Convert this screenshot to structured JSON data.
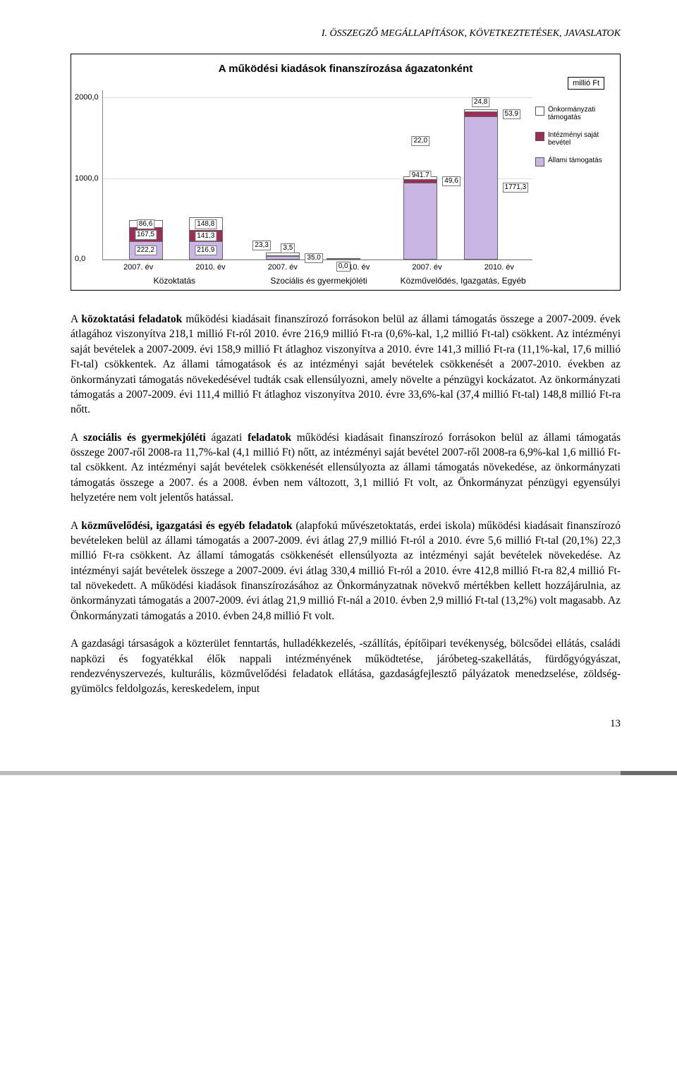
{
  "running_head": "I. ÖSSZEGZŐ MEGÁLLAPÍTÁSOK, KÖVETKEZTETÉSEK, JAVASLATOK",
  "chart": {
    "type": "stacked-bar",
    "title": "A működési kiadások finanszírozása ágazatonként",
    "unit_box": "millió Ft",
    "y_ticks": [
      "0,0",
      "1000,0",
      "2000,0"
    ],
    "x_year_labels": [
      "2007. év",
      "2010. év",
      "2007. év",
      "2010. év",
      "2007. év",
      "2010. év"
    ],
    "x_group_labels": [
      "Közoktatás",
      "Szociális és gyermekjóléti",
      "Közművelődés, Igazgatás, Egyéb"
    ],
    "legend": [
      {
        "label": "Önkormányzati támogatás",
        "color": "#ffffff"
      },
      {
        "label": "Intézményi saját bevétel",
        "color": "#9a2e59"
      },
      {
        "label": "Állami támogatás",
        "color": "#c9b6e4"
      }
    ],
    "ymax": 2100,
    "bars": [
      {
        "x_pct": 6,
        "segs": [
          {
            "v": 222.2,
            "c": "#c9b6e4",
            "lbl": "222,2",
            "side": "c"
          },
          {
            "v": 167.5,
            "c": "#9a2e59",
            "lbl": "167,5",
            "side": "c"
          },
          {
            "v": 86.6,
            "c": "#ffffff",
            "lbl": "86,6",
            "side": "c"
          }
        ]
      },
      {
        "x_pct": 20,
        "segs": [
          {
            "v": 216.9,
            "c": "#c9b6e4",
            "lbl": "216,9",
            "side": "c"
          },
          {
            "v": 141.3,
            "c": "#9a2e59",
            "lbl": "141,3",
            "side": "c"
          },
          {
            "v": 148.8,
            "c": "#ffffff",
            "lbl": "148,8",
            "side": "c"
          }
        ]
      },
      {
        "x_pct": 38,
        "segs": [
          {
            "v": 35.0,
            "c": "#c9b6e4",
            "lbl": "35,0",
            "side": "r"
          },
          {
            "v": 3.5,
            "c": "#9a2e59",
            "lbl": "3,5",
            "side": "t2"
          },
          {
            "v": 23.3,
            "c": "#ffffff",
            "lbl": "23,3",
            "side": "t1"
          }
        ]
      },
      {
        "x_pct": 52,
        "segs": [
          {
            "v": 0.01,
            "c": "#c9b6e4",
            "lbl": "0,0",
            "side": "b"
          }
        ]
      },
      {
        "x_pct": 70,
        "segs": [
          {
            "v": 941.7,
            "c": "#c9b6e4",
            "lbl": "941,7",
            "side": "t"
          },
          {
            "v": 49.6,
            "c": "#9a2e59",
            "lbl": "49,6",
            "side": "r"
          },
          {
            "v": 22.0,
            "c": "#ffffff",
            "lbl": "22,0",
            "side": "far"
          }
        ]
      },
      {
        "x_pct": 84,
        "segs": [
          {
            "v": 1771.3,
            "c": "#c9b6e4",
            "lbl": "1771,3",
            "side": "r"
          },
          {
            "v": 53.9,
            "c": "#9a2e59",
            "lbl": "53,9",
            "side": "r"
          },
          {
            "v": 24.8,
            "c": "#ffffff",
            "lbl": "24,8",
            "side": "t"
          }
        ]
      }
    ]
  },
  "para1": "A közoktatási feladatok működési kiadásait finanszírozó forrásokon belül az állami támogatás összege a 2007-2009. évek átlagához viszonyítva 218,1 millió Ft-ról 2010. évre 216,9 millió Ft-ra (0,6%-kal, 1,2 millió Ft-tal) csökkent. Az intézményi saját bevételek a 2007-2009. évi 158,9 millió Ft átlaghoz viszonyítva a 2010. évre 141,3 millió Ft-ra (11,1%-kal, 17,6 millió Ft-tal) csökkentek. Az állami támogatások és az intézményi saját bevételek csökkenését a 2007-2010. években az önkormányzati támogatás növekedésével tudták csak ellensúlyozni, amely növelte a pénzügyi kockázatot. Az önkormányzati támogatás a 2007-2009. évi 111,4 millió Ft átlaghoz viszonyítva 2010. évre 33,6%-kal (37,4 millió Ft-tal) 148,8 millió Ft-ra nőtt.",
  "para1_bold": "közoktatási feladatok",
  "para2": "A szociális és gyermekjóléti ágazati feladatok működési kiadásait finanszírozó forrásokon belül az állami támogatás összege 2007-ről 2008-ra 11,7%-kal (4,1 millió Ft) nőtt, az intézményi saját bevétel 2007-ről 2008-ra 6,9%-kal 1,6 millió Ft-tal csökkent. Az intézményi saját bevételek csökkenését ellensúlyozta az állami támogatás növekedése, az önkormányzati támogatás összege a 2007. és a 2008. évben nem változott, 3,1 millió Ft volt, az Önkormányzat pénzügyi egyensúlyi helyzetére nem volt jelentős hatással.",
  "para2_bold1": "szociális és gyermekjóléti",
  "para2_bold2": "feladatok",
  "para3": "A közművelődési, igazgatási és egyéb feladatok (alapfokú művészetoktatás, erdei iskola) működési kiadásait finanszírozó bevételeken belül az állami támogatás a 2007-2009. évi átlag 27,9 millió Ft-ról a 2010. évre 5,6 millió Ft-tal (20,1%) 22,3 millió Ft-ra csökkent. Az állami támogatás csökkenését ellensúlyozta az intézményi saját bevételek növekedése. Az intézményi saját bevételek összege a 2007-2009. évi átlag 330,4 millió Ft-ról a 2010. évre 412,8 millió Ft-ra 82,4 millió Ft-tal növekedett. A működési kiadások finanszírozásához az Önkormányzatnak növekvő mértékben kellett hozzájárulnia, az önkormányzati támogatás a 2007-2009. évi átlag 21,9 millió Ft-nál a 2010. évben 2,9 millió Ft-tal (13,2%) volt magasabb. Az Önkormányzati támogatás a 2010. évben 24,8 millió Ft volt.",
  "para3_bold": "közművelődési, igazgatási és egyéb feladatok",
  "para4": "A gazdasági társaságok a közterület fenntartás, hulladékkezelés, -szállítás, építőipari tevékenység, bölcsődei ellátás, családi napközi és fogyatékkal élők nappali intézményének működtetése, járóbeteg-szakellátás, fürdőgyógyászat, rendezvényszervezés, kulturális, közművelődési feladatok ellátása, gazdaságfejlesztő pályázatok menedzselése, zöldség-gyümölcs feldolgozás, kereskedelem, input",
  "page_number": "13"
}
